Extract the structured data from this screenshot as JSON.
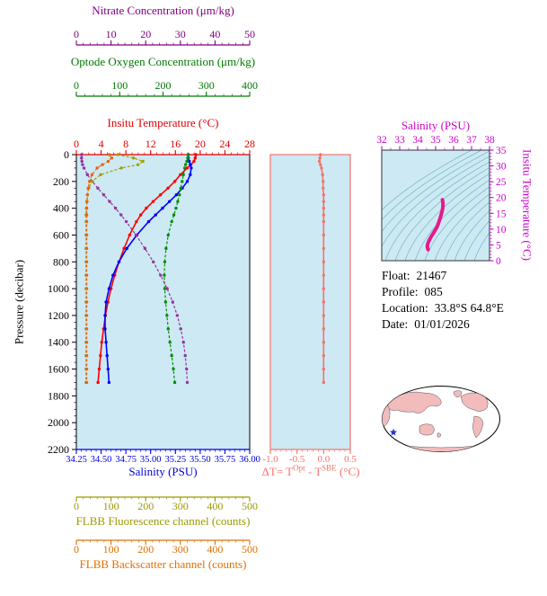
{
  "info": {
    "float_label": "Float:",
    "float_value": "21467",
    "profile_label": "Profile:",
    "profile_value": "085",
    "location_label": "Location:",
    "location_value": "33.8°S  64.8°E",
    "date_label": "Date:",
    "date_value": "01/01/2026"
  },
  "colors": {
    "plot_bg": "#cde9f4",
    "contour": "#5fb0b0",
    "land": "#f2bcbc",
    "star": "#2233cc"
  },
  "chart_data": [
    {
      "type": "line",
      "id": "multi-axis-profile",
      "ylabel": "Pressure (decibar)",
      "ylim": [
        0,
        2200
      ],
      "yticks": [
        0,
        200,
        400,
        600,
        800,
        1000,
        1200,
        1400,
        1600,
        1800,
        2000,
        2200
      ],
      "pressure_levels": [
        0,
        25,
        50,
        75,
        100,
        150,
        200,
        250,
        300,
        350,
        400,
        450,
        500,
        600,
        700,
        800,
        900,
        1000,
        1100,
        1200,
        1300,
        1400,
        1500,
        1600,
        1700
      ],
      "x_axes": [
        {
          "key": "nitrate",
          "label": "Nitrate Concentration (μm/kg)",
          "color": "#800080",
          "range": [
            0,
            50
          ],
          "ticks": [
            "0",
            "10",
            "20",
            "30",
            "40",
            "50"
          ]
        },
        {
          "key": "oxygen",
          "label": "Optode Oxygen Concentration (μm/kg)",
          "color": "#007a00",
          "range": [
            0,
            400
          ],
          "ticks": [
            "0",
            "100",
            "200",
            "300",
            "400"
          ]
        },
        {
          "key": "temperature",
          "label": "Insitu Temperature (°C)",
          "color": "#e00000",
          "range": [
            0,
            28
          ],
          "ticks": [
            "0",
            "4",
            "8",
            "12",
            "16",
            "20",
            "24",
            "28"
          ]
        },
        {
          "key": "salinity",
          "label": "Salinity (PSU)",
          "color": "#0000dd",
          "range": [
            34.25,
            36.0
          ],
          "ticks": [
            "34.25",
            "34.50",
            "34.75",
            "35.00",
            "35.25",
            "35.50",
            "35.75",
            "36.00"
          ]
        },
        {
          "key": "fluorescence",
          "label": "FLBB Fluorescence channel (counts)",
          "color": "#9a9a00",
          "range": [
            0,
            500
          ],
          "ticks": [
            "0",
            "100",
            "200",
            "300",
            "400",
            "500"
          ]
        },
        {
          "key": "backscatter",
          "label": "FLBB Backscatter channel (counts)",
          "color": "#e07000",
          "range": [
            0,
            500
          ],
          "ticks": [
            "0",
            "100",
            "200",
            "300",
            "400",
            "500"
          ]
        }
      ],
      "series": [
        {
          "key": "temperature",
          "axis": "temperature",
          "name": "Insitu Temperature",
          "color": "#ff0000",
          "dash": false,
          "width": 1.6,
          "values": [
            19.3,
            19.2,
            19.0,
            18.5,
            17.9,
            16.8,
            15.9,
            14.8,
            13.6,
            12.4,
            11.3,
            10.4,
            9.7,
            8.6,
            7.7,
            6.9,
            6.2,
            5.6,
            5.1,
            4.7,
            4.4,
            4.1,
            3.9,
            3.7,
            3.5
          ]
        },
        {
          "key": "salinity",
          "axis": "salinity",
          "name": "Salinity",
          "color": "#0000ff",
          "dash": false,
          "width": 1.6,
          "values": [
            35.38,
            35.38,
            35.39,
            35.4,
            35.41,
            35.4,
            35.37,
            35.32,
            35.26,
            35.19,
            35.12,
            35.05,
            34.98,
            34.86,
            34.76,
            34.68,
            34.62,
            34.58,
            34.55,
            34.54,
            34.54,
            34.55,
            34.56,
            34.57,
            34.58
          ]
        },
        {
          "key": "oxygen",
          "axis": "oxygen",
          "name": "Optode Oxygen Concentration",
          "color": "#008f00",
          "dash": true,
          "width": 1.2,
          "values": [
            258,
            257,
            255,
            252,
            250,
            247,
            244,
            241,
            238,
            234,
            230,
            225,
            220,
            212,
            207,
            204,
            203,
            204,
            206,
            209,
            212,
            216,
            220,
            224,
            227
          ]
        },
        {
          "key": "nitrate",
          "axis": "nitrate",
          "name": "Nitrate Concentration",
          "color": "#993399",
          "dash": true,
          "width": 1.2,
          "values": [
            1.5,
            1.5,
            1.6,
            1.8,
            2.2,
            3.2,
            4.6,
            6.2,
            7.9,
            9.6,
            11.3,
            12.9,
            14.4,
            17.2,
            19.8,
            22.2,
            24.3,
            26.2,
            27.8,
            29.1,
            30.1,
            30.9,
            31.4,
            31.8,
            32.0
          ]
        },
        {
          "key": "fluorescence",
          "axis": "fluorescence",
          "name": "FLBB Fluorescence channel",
          "color": "#a0a000",
          "dash": true,
          "width": 1.2,
          "values": [
            120,
            165,
            192,
            178,
            130,
            70,
            45,
            36,
            32,
            30,
            29,
            28,
            28,
            28,
            28,
            28,
            28,
            28,
            28,
            28,
            28,
            28,
            28,
            28,
            28
          ]
        },
        {
          "key": "backscatter",
          "axis": "backscatter",
          "name": "FLBB Backscatter channel",
          "color": "#e8650e",
          "dash": true,
          "width": 1.2,
          "values": [
            95,
            102,
            92,
            75,
            60,
            45,
            38,
            34,
            32,
            31,
            30,
            30,
            30,
            30,
            30,
            30,
            30,
            30,
            30,
            30,
            30,
            30,
            30,
            30,
            30
          ]
        }
      ]
    },
    {
      "type": "line",
      "id": "delta-temperature",
      "xlabel": "ΔT= T^Opt - T^SBE (°C)",
      "xlabel_parts": {
        "pre": "ΔT= T",
        "sup1": "Opt",
        "mid": " - T",
        "sup2": "SBE",
        "post": " (°C)"
      },
      "color": "#f4736b",
      "xlim": [
        -1.0,
        0.5
      ],
      "xticks": [
        "-1.0",
        "-0.5",
        "0.0",
        "0.5"
      ],
      "ylim": [
        0,
        2200
      ],
      "series": [
        {
          "name": "Temperature difference",
          "color": "#f4736b",
          "pressure": [
            0,
            25,
            50,
            75,
            100,
            150,
            200,
            250,
            300,
            350,
            400,
            450,
            500,
            600,
            700,
            800,
            900,
            1000,
            1100,
            1200,
            1300,
            1400,
            1500,
            1600,
            1700
          ],
          "values": [
            -0.06,
            -0.07,
            -0.08,
            -0.06,
            -0.04,
            -0.02,
            -0.01,
            -0.01,
            0.0,
            0.0,
            0.0,
            0.0,
            0.0,
            0.0,
            0.0,
            0.0,
            0.0,
            0.0,
            0.0,
            0.0,
            0.0,
            0.0,
            0.0,
            0.0,
            0.0
          ]
        }
      ]
    },
    {
      "type": "line",
      "id": "ts-diagram",
      "xlabel": "Salinity (PSU)",
      "ylabel": "Insitu Temperature (°C)",
      "color": "#cc00cc",
      "xlim": [
        32,
        38
      ],
      "xticks": [
        32,
        33,
        34,
        35,
        36,
        37,
        38
      ],
      "ylim": [
        0,
        35
      ],
      "yticks": [
        0,
        5,
        10,
        15,
        20,
        25,
        30,
        35
      ],
      "series": [
        {
          "name": "T-S curve",
          "color": "#e6198c",
          "salinity": [
            35.38,
            35.38,
            35.39,
            35.4,
            35.41,
            35.4,
            35.37,
            35.32,
            35.26,
            35.19,
            35.12,
            35.05,
            34.98,
            34.86,
            34.76,
            34.68,
            34.62,
            34.58,
            34.55,
            34.54,
            34.54,
            34.55,
            34.56,
            34.57,
            34.58
          ],
          "temperature": [
            19.3,
            19.2,
            19.0,
            18.5,
            17.9,
            16.8,
            15.9,
            14.8,
            13.6,
            12.4,
            11.3,
            10.4,
            9.7,
            8.6,
            7.7,
            6.9,
            6.2,
            5.6,
            5.1,
            4.7,
            4.4,
            4.1,
            3.9,
            3.7,
            3.5
          ]
        }
      ]
    }
  ]
}
